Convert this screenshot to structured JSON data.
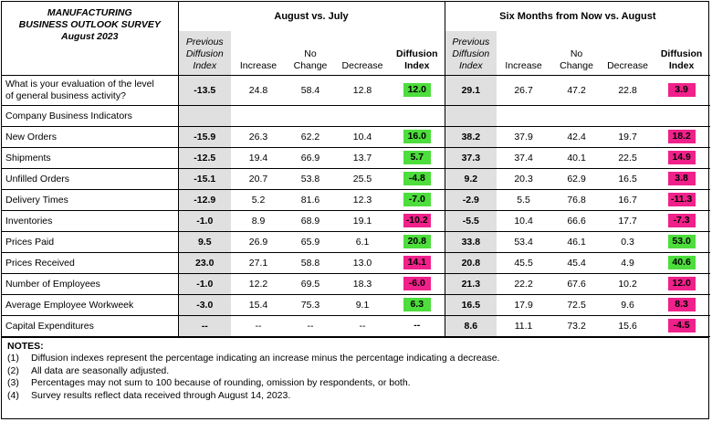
{
  "title_lines": [
    "MANUFACTURING",
    "BUSINESS OUTLOOK SURVEY",
    "August 2023"
  ],
  "groups": {
    "current": "August vs. July",
    "future": "Six Months from Now vs. August"
  },
  "col_headers": {
    "prev_line1": "Previous",
    "prev_line2": "Diffusion",
    "prev_line3": "Index",
    "increase": "Increase",
    "nochange_line1": "No",
    "nochange_line2": "Change",
    "decrease": "Decrease",
    "diff_line1": "Diffusion",
    "diff_line2": "Index"
  },
  "colors": {
    "green": "#4ddd3c",
    "pink": "#f0218a"
  },
  "rows": [
    {
      "label_line1": "What is your evaluation of the level",
      "label_line2": "of general business activity?",
      "cur": {
        "prev": "-13.5",
        "inc": "24.8",
        "nc": "58.4",
        "dec": "12.8",
        "diff": "12.0",
        "color": "green"
      },
      "fut": {
        "prev": "29.1",
        "inc": "26.7",
        "nc": "47.2",
        "dec": "22.8",
        "diff": "3.9",
        "color": "pink"
      }
    },
    {
      "label": "Company Business Indicators",
      "section": true
    },
    {
      "label": "New Orders",
      "cur": {
        "prev": "-15.9",
        "inc": "26.3",
        "nc": "62.2",
        "dec": "10.4",
        "diff": "16.0",
        "color": "green"
      },
      "fut": {
        "prev": "38.2",
        "inc": "37.9",
        "nc": "42.4",
        "dec": "19.7",
        "diff": "18.2",
        "color": "pink"
      }
    },
    {
      "label": "Shipments",
      "cur": {
        "prev": "-12.5",
        "inc": "19.4",
        "nc": "66.9",
        "dec": "13.7",
        "diff": "5.7",
        "color": "green"
      },
      "fut": {
        "prev": "37.3",
        "inc": "37.4",
        "nc": "40.1",
        "dec": "22.5",
        "diff": "14.9",
        "color": "pink"
      }
    },
    {
      "label": "Unfilled Orders",
      "cur": {
        "prev": "-15.1",
        "inc": "20.7",
        "nc": "53.8",
        "dec": "25.5",
        "diff": "-4.8",
        "color": "green"
      },
      "fut": {
        "prev": "9.2",
        "inc": "20.3",
        "nc": "62.9",
        "dec": "16.5",
        "diff": "3.8",
        "color": "pink"
      }
    },
    {
      "label": "Delivery Times",
      "cur": {
        "prev": "-12.9",
        "inc": "5.2",
        "nc": "81.6",
        "dec": "12.3",
        "diff": "-7.0",
        "color": "green"
      },
      "fut": {
        "prev": "-2.9",
        "inc": "5.5",
        "nc": "76.8",
        "dec": "16.7",
        "diff": "-11.3",
        "color": "pink"
      }
    },
    {
      "label": "Inventories",
      "cur": {
        "prev": "-1.0",
        "inc": "8.9",
        "nc": "68.9",
        "dec": "19.1",
        "diff": "-10.2",
        "color": "pink"
      },
      "fut": {
        "prev": "-5.5",
        "inc": "10.4",
        "nc": "66.6",
        "dec": "17.7",
        "diff": "-7.3",
        "color": "pink"
      }
    },
    {
      "label": "Prices Paid",
      "cur": {
        "prev": "9.5",
        "inc": "26.9",
        "nc": "65.9",
        "dec": "6.1",
        "diff": "20.8",
        "color": "green"
      },
      "fut": {
        "prev": "33.8",
        "inc": "53.4",
        "nc": "46.1",
        "dec": "0.3",
        "diff": "53.0",
        "color": "green"
      }
    },
    {
      "label": "Prices Received",
      "cur": {
        "prev": "23.0",
        "inc": "27.1",
        "nc": "58.8",
        "dec": "13.0",
        "diff": "14.1",
        "color": "pink"
      },
      "fut": {
        "prev": "20.8",
        "inc": "45.5",
        "nc": "45.4",
        "dec": "4.9",
        "diff": "40.6",
        "color": "green"
      }
    },
    {
      "label": "Number of Employees",
      "cur": {
        "prev": "-1.0",
        "inc": "12.2",
        "nc": "69.5",
        "dec": "18.3",
        "diff": "-6.0",
        "color": "pink"
      },
      "fut": {
        "prev": "21.3",
        "inc": "22.2",
        "nc": "67.6",
        "dec": "10.2",
        "diff": "12.0",
        "color": "pink"
      }
    },
    {
      "label": "Average Employee Workweek",
      "cur": {
        "prev": "-3.0",
        "inc": "15.4",
        "nc": "75.3",
        "dec": "9.1",
        "diff": "6.3",
        "color": "green"
      },
      "fut": {
        "prev": "16.5",
        "inc": "17.9",
        "nc": "72.5",
        "dec": "9.6",
        "diff": "8.3",
        "color": "pink"
      }
    },
    {
      "label": "Capital Expenditures",
      "cur": {
        "prev": "--",
        "inc": "--",
        "nc": "--",
        "dec": "--",
        "diff": "--",
        "color": "none"
      },
      "fut": {
        "prev": "8.6",
        "inc": "11.1",
        "nc": "73.2",
        "dec": "15.6",
        "diff": "-4.5",
        "color": "pink"
      }
    }
  ],
  "notes": {
    "heading": "NOTES:",
    "items": [
      {
        "num": "(1)",
        "text": "Diffusion indexes represent the percentage indicating an increase minus the percentage indicating a decrease."
      },
      {
        "num": "(2)",
        "text": "All data are seasonally adjusted."
      },
      {
        "num": "(3)",
        "text": "Percentages may not sum to 100 because of rounding, omission by respondents, or both."
      },
      {
        "num": "(4)",
        "text": "Survey results reflect data received through August 14, 2023."
      }
    ]
  }
}
